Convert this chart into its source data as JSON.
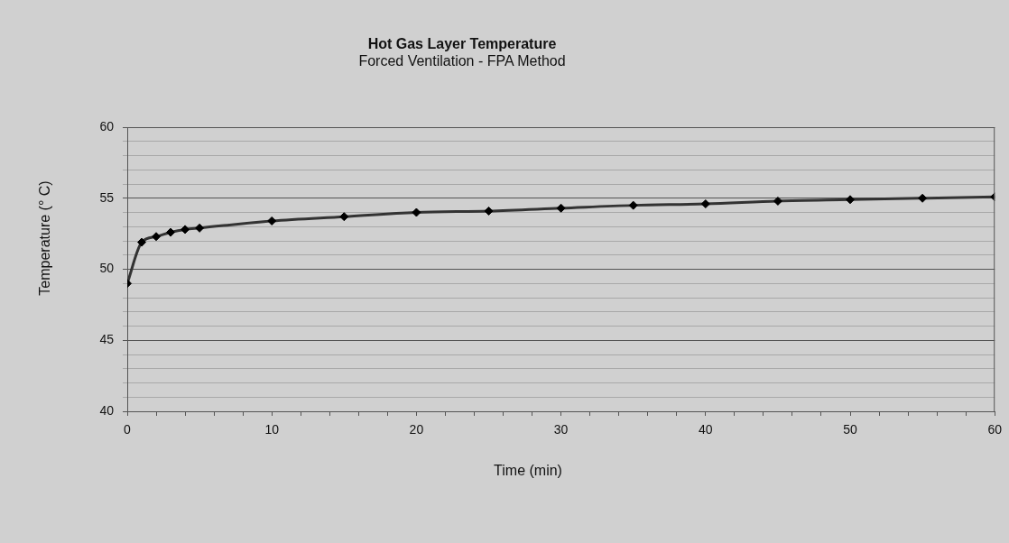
{
  "chart_data": {
    "type": "line",
    "title": "Hot Gas Layer Temperature",
    "subtitle": "Forced Ventilation - FPA Method",
    "xlabel": "Time (min)",
    "ylabel": "Temperature (° C)",
    "x": [
      0,
      1,
      2,
      3,
      4,
      5,
      10,
      15,
      20,
      25,
      30,
      35,
      40,
      45,
      50,
      55,
      60
    ],
    "values": [
      49.0,
      51.9,
      52.3,
      52.6,
      52.8,
      52.9,
      53.4,
      53.7,
      54.0,
      54.1,
      54.3,
      54.5,
      54.6,
      54.8,
      54.9,
      55.0,
      55.1
    ],
    "color": "#333333",
    "marker": "diamond",
    "line_style": "solid",
    "grid": "y",
    "xlim": [
      0,
      60
    ],
    "xticks": [
      0,
      {
        "value": 2,
        "label": null
      },
      {
        "value": 4,
        "label": null
      },
      {
        "value": 6,
        "label": null
      },
      {
        "value": 8,
        "label": null
      },
      10,
      {
        "value": 12,
        "label": null
      },
      {
        "value": 14,
        "label": null
      },
      {
        "value": 16,
        "label": null
      },
      {
        "value": 18,
        "label": null
      },
      20,
      {
        "value": 22,
        "label": null
      },
      {
        "value": 24,
        "label": null
      },
      {
        "value": 26,
        "label": null
      },
      {
        "value": 28,
        "label": null
      },
      30,
      {
        "value": 32,
        "label": null
      },
      {
        "value": 34,
        "label": null
      },
      {
        "value": 36,
        "label": null
      },
      {
        "value": 38,
        "label": null
      },
      40,
      {
        "value": 42,
        "label": null
      },
      {
        "value": 44,
        "label": null
      },
      {
        "value": 46,
        "label": null
      },
      {
        "value": 48,
        "label": null
      },
      50,
      {
        "value": 52,
        "label": null
      },
      {
        "value": 54,
        "label": null
      },
      {
        "value": 56,
        "label": null
      },
      {
        "value": 58,
        "label": null
      },
      60
    ],
    "ylim": [
      40,
      60
    ],
    "yticks": [
      40,
      {
        "value": 41,
        "label": null
      },
      {
        "value": 42,
        "label": null
      },
      {
        "value": 43,
        "label": null
      },
      {
        "value": 44,
        "label": null
      },
      45,
      {
        "value": 46,
        "label": null
      },
      {
        "value": 47,
        "label": null
      },
      {
        "value": 48,
        "label": null
      },
      {
        "value": 49,
        "label": null
      },
      50,
      {
        "value": 51,
        "label": null
      },
      {
        "value": 52,
        "label": null
      },
      {
        "value": 53,
        "label": null
      },
      {
        "value": 54,
        "label": null
      },
      55,
      {
        "value": 56,
        "label": null
      },
      {
        "value": 57,
        "label": null
      },
      {
        "value": 58,
        "label": null
      },
      {
        "value": 59,
        "label": null
      },
      60
    ]
  }
}
